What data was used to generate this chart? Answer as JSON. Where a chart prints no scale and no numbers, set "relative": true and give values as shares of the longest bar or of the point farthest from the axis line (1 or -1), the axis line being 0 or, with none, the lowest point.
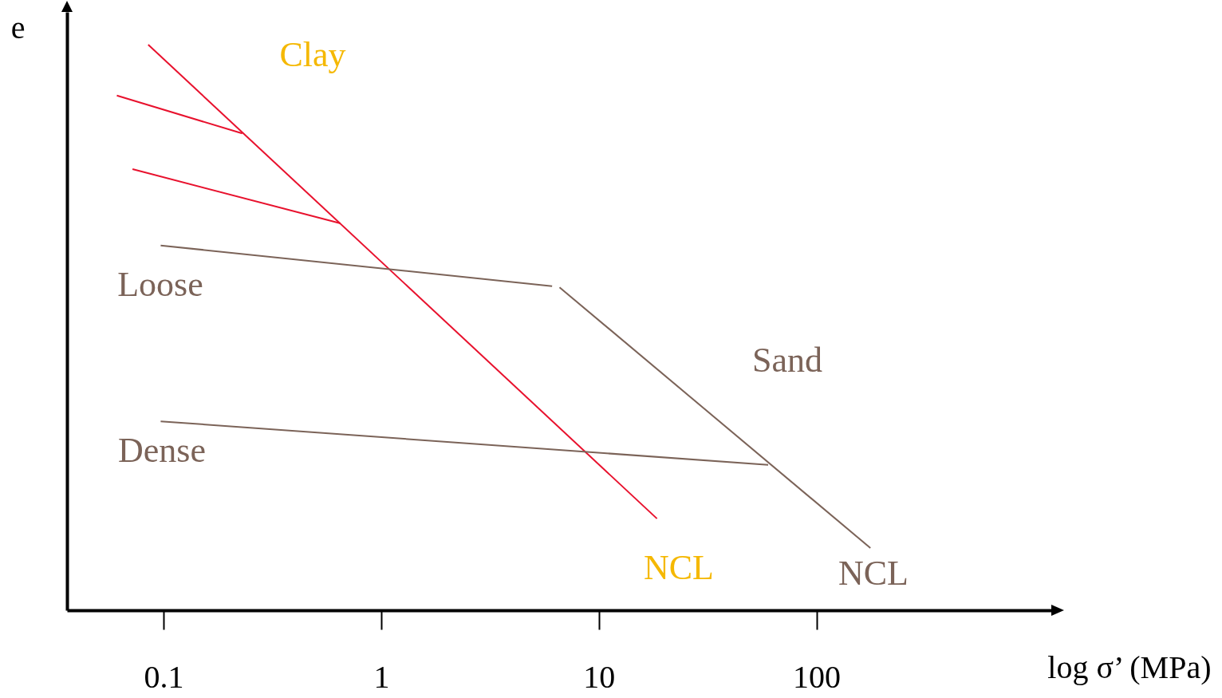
{
  "chart_data": {
    "type": "line",
    "relative": true,
    "ylabel": "e",
    "xlabel": "log σ’  (MPa)",
    "log": "x",
    "xlim": [
      0.036,
      1200
    ],
    "xticks": [
      0.1,
      1,
      10,
      100
    ],
    "grid": false,
    "marker": "none",
    "line_style": "solid",
    "series": [
      {
        "color": "#e8112d",
        "x": [
          0.085,
          18.5
        ],
        "values": [
          1.0,
          0.162
        ]
      },
      {
        "color": "#e8112d",
        "x": [
          0.061,
          0.23
        ],
        "values": [
          0.91,
          0.843
        ]
      },
      {
        "color": "#e8112d",
        "x": [
          0.072,
          0.65
        ],
        "values": [
          0.78,
          0.684
        ]
      },
      {
        "color": "#7b6358",
        "x": [
          0.097,
          6.1
        ],
        "values": [
          0.645,
          0.573
        ]
      },
      {
        "color": "#7b6358",
        "x": [
          6.6,
          177
        ],
        "values": [
          0.571,
          0.11
        ]
      },
      {
        "color": "#7b6358",
        "x": [
          0.097,
          60
        ],
        "values": [
          0.334,
          0.257
        ]
      }
    ],
    "annotations": [
      "Clay",
      "Loose",
      "Dense",
      "Sand",
      "NCL",
      "NCL"
    ]
  }
}
